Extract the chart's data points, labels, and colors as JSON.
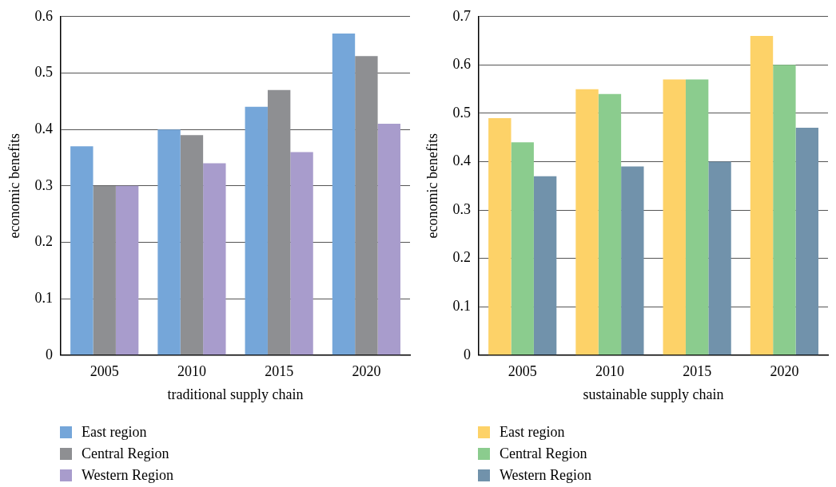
{
  "chart_data": [
    {
      "type": "bar",
      "xlabel": "traditional supply chain",
      "ylabel": "economic benefits",
      "categories": [
        "2005",
        "2010",
        "2015",
        "2020"
      ],
      "ylim": [
        0,
        0.6
      ],
      "yticks": [
        0,
        0.1,
        0.2,
        0.3,
        0.4,
        0.5,
        0.6
      ],
      "grid": "y",
      "legend": "bottom",
      "series": [
        {
          "name": "East region",
          "color": "#75a6d9",
          "values": [
            0.37,
            0.4,
            0.44,
            0.57
          ]
        },
        {
          "name": "Central Region",
          "color": "#8e8f92",
          "values": [
            0.3,
            0.39,
            0.47,
            0.53
          ]
        },
        {
          "name": "Western Region",
          "color": "#a89ccc",
          "values": [
            0.3,
            0.34,
            0.36,
            0.41
          ]
        }
      ]
    },
    {
      "type": "bar",
      "xlabel": "sustainable supply chain",
      "ylabel": "economic benefits",
      "categories": [
        "2005",
        "2010",
        "2015",
        "2020"
      ],
      "ylim": [
        0,
        0.7
      ],
      "yticks": [
        0,
        0.1,
        0.2,
        0.3,
        0.4,
        0.5,
        0.6,
        0.7
      ],
      "grid": "y",
      "legend": "bottom",
      "series": [
        {
          "name": "East region",
          "color": "#fdd268",
          "values": [
            0.49,
            0.55,
            0.57,
            0.66
          ]
        },
        {
          "name": "Central Region",
          "color": "#8bcc8e",
          "values": [
            0.44,
            0.54,
            0.57,
            0.6
          ]
        },
        {
          "name": "Western Region",
          "color": "#7192ab",
          "values": [
            0.37,
            0.39,
            0.4,
            0.47
          ]
        }
      ]
    }
  ]
}
